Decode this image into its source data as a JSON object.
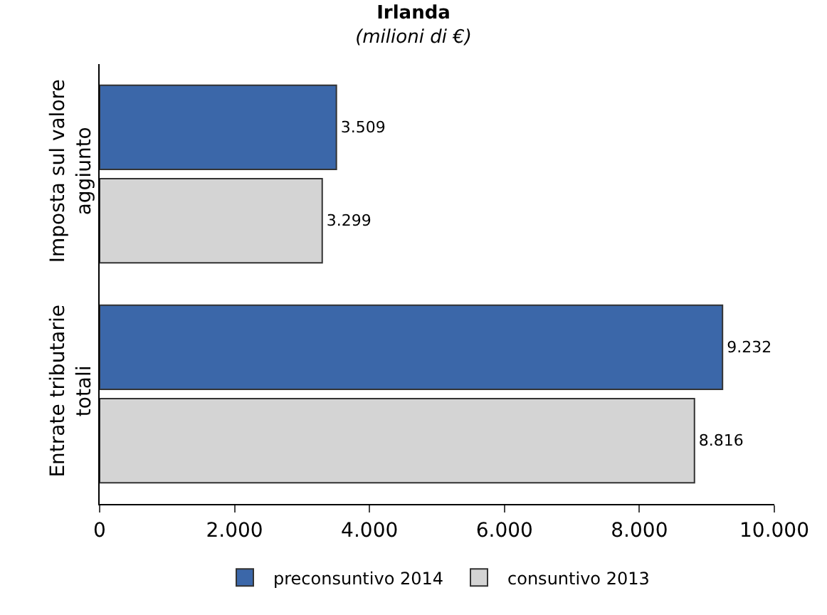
{
  "chart_data": {
    "type": "bar",
    "orientation": "horizontal",
    "title": "Irlanda",
    "subtitle": "(milioni di €)",
    "categories": [
      "Imposta sul valore aggiunto",
      "Entrate tributarie totali"
    ],
    "series": [
      {
        "name": "preconsuntivo 2014",
        "color": "#3b67a9",
        "values": [
          3509,
          9232
        ],
        "value_labels": [
          "3.509",
          "9.232"
        ]
      },
      {
        "name": "consuntivo 2013",
        "color": "#d4d4d4",
        "values": [
          3299,
          8816
        ],
        "value_labels": [
          "3.299",
          "8.816"
        ]
      }
    ],
    "xlim": [
      0,
      10000
    ],
    "xticks": [
      {
        "value": 0,
        "label": "0"
      },
      {
        "value": 2000,
        "label": "2.000"
      },
      {
        "value": 4000,
        "label": "4.000"
      },
      {
        "value": 6000,
        "label": "6.000"
      },
      {
        "value": 8000,
        "label": "8.000"
      },
      {
        "value": 10000,
        "label": "10.000"
      }
    ],
    "legend": "bottom"
  }
}
